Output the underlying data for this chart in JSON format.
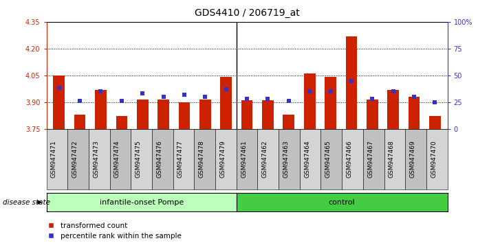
{
  "title": "GDS4410 / 206719_at",
  "samples": [
    "GSM947471",
    "GSM947472",
    "GSM947473",
    "GSM947474",
    "GSM947475",
    "GSM947476",
    "GSM947477",
    "GSM947478",
    "GSM947479",
    "GSM947461",
    "GSM947462",
    "GSM947463",
    "GSM947464",
    "GSM947465",
    "GSM947466",
    "GSM947467",
    "GSM947468",
    "GSM947469",
    "GSM947470"
  ],
  "red_values": [
    4.05,
    3.83,
    3.97,
    3.82,
    3.915,
    3.915,
    3.9,
    3.915,
    4.04,
    3.91,
    3.91,
    3.83,
    4.06,
    4.04,
    4.27,
    3.915,
    3.97,
    3.93,
    3.82
  ],
  "blue_values": [
    38,
    26,
    35,
    26,
    33,
    30,
    32,
    30,
    37,
    28,
    28,
    26,
    35,
    35,
    45,
    28,
    35,
    30,
    25
  ],
  "n_group1": 9,
  "n_group2": 10,
  "y_min": 3.75,
  "y_max": 4.35,
  "y_ticks_left": [
    3.75,
    3.9,
    4.05,
    4.2,
    4.35
  ],
  "y_ticks_right": [
    0,
    25,
    50,
    75,
    100
  ],
  "bar_color": "#cc2200",
  "dot_color": "#3333cc",
  "group1_color": "#bbffbb",
  "group2_color": "#44cc44",
  "group_label_1": "infantile-onset Pompe",
  "group_label_2": "control",
  "legend_label_1": "transformed count",
  "legend_label_2": "percentile rank within the sample",
  "disease_state_label": "disease state",
  "title_fontsize": 10,
  "tick_fontsize": 7,
  "cell_color_even": "#d4d4d4",
  "cell_color_odd": "#c0c0c0"
}
